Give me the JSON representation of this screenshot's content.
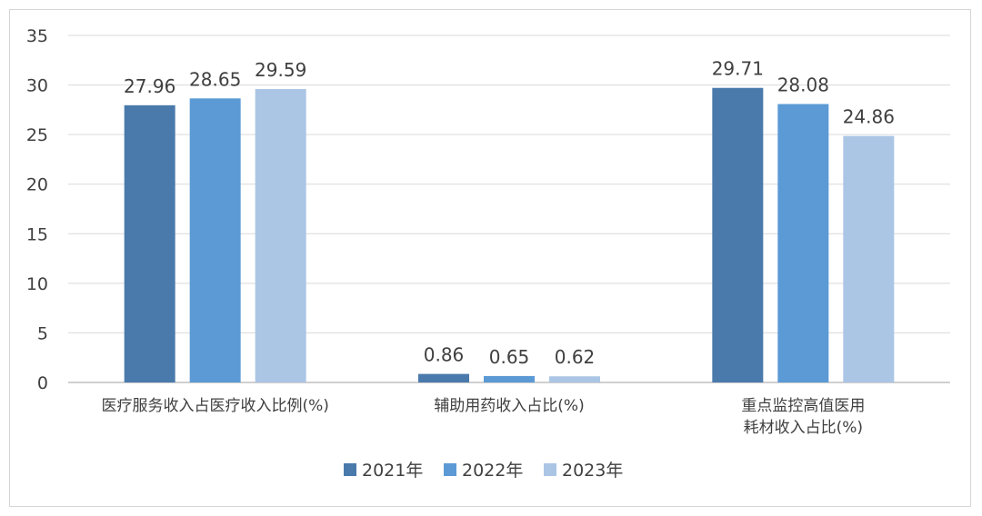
{
  "chart_data": {
    "type": "bar",
    "categories": [
      [
        "医疗服务收入占医疗收入比例(%)"
      ],
      [
        "辅助用药收入占比(%)"
      ],
      [
        "重点监控高值医用",
        "耗材收入占比(%)"
      ]
    ],
    "series": [
      {
        "name": "2021年",
        "color": "#4a7aab",
        "values": [
          27.96,
          0.86,
          29.71
        ]
      },
      {
        "name": "2022年",
        "color": "#5b9ad5",
        "values": [
          28.65,
          0.65,
          28.08
        ]
      },
      {
        "name": "2023年",
        "color": "#abc5e5",
        "values": [
          29.59,
          0.62,
          24.86
        ]
      }
    ],
    "yticks": [
      0,
      5,
      10,
      15,
      20,
      25,
      30,
      35
    ],
    "ylim": [
      0,
      35
    ],
    "grid": true,
    "legend_position": "bottom"
  }
}
